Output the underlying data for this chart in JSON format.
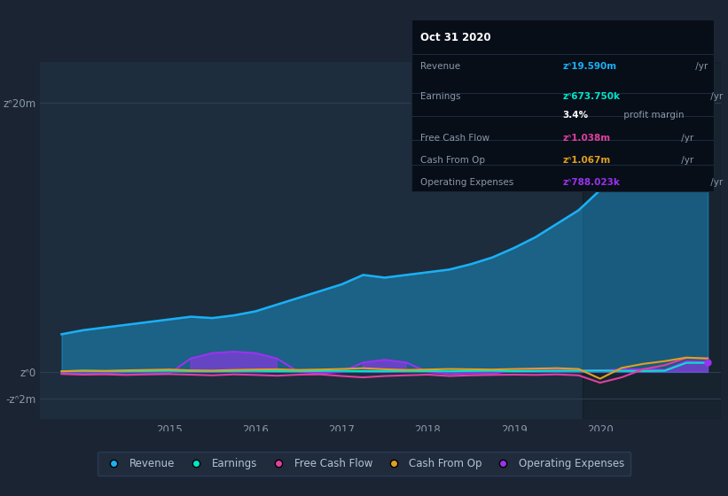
{
  "bg_color": "#1b2433",
  "plot_bg_color": "#1e2d3d",
  "grid_color": "#2e3f52",
  "text_color": "#8899aa",
  "white": "#ffffff",
  "yticks_labels": [
    "zᐢ20m",
    "zᐢ0",
    "-zᐢ2m"
  ],
  "ytick_vals": [
    20000000,
    0,
    -2000000
  ],
  "ylim": [
    -3500000,
    23000000
  ],
  "xlim": [
    2013.5,
    2021.4
  ],
  "xtick_vals": [
    2015,
    2016,
    2017,
    2018,
    2019,
    2020
  ],
  "revenue_color": "#1ab0f5",
  "earnings_color": "#00e5cc",
  "fcf_color": "#e040a0",
  "cashfromop_color": "#e0a020",
  "opex_color": "#9933ee",
  "revenue_fill_alpha": 0.4,
  "opex_fill_alpha": 0.6,
  "highlight_start": 2019.8,
  "highlight_end": 2021.4,
  "tooltip_bg": "#080e18",
  "tooltip_title": "Oct 31 2020",
  "tooltip_revenue_label": "Revenue",
  "tooltip_revenue_val": "zᐢ19.590m",
  "tooltip_revenue_yr": " /yr",
  "tooltip_earnings_label": "Earnings",
  "tooltip_earnings_val": "zᐢ673.750k",
  "tooltip_earnings_yr": " /yr",
  "tooltip_margin": "3.4%",
  "tooltip_margin_text": " profit margin",
  "tooltip_fcf_label": "Free Cash Flow",
  "tooltip_fcf_val": "zᐢ1.038m",
  "tooltip_fcf_yr": " /yr",
  "tooltip_cashop_label": "Cash From Op",
  "tooltip_cashop_val": "zᐢ1.067m",
  "tooltip_cashop_yr": " /yr",
  "tooltip_opex_label": "Operating Expenses",
  "tooltip_opex_val": "zᐢ788.023k",
  "tooltip_opex_yr": " /yr",
  "legend_labels": [
    "Revenue",
    "Earnings",
    "Free Cash Flow",
    "Cash From Op",
    "Operating Expenses"
  ],
  "revenue_t": [
    2013.75,
    2014.0,
    2014.25,
    2014.5,
    2014.75,
    2015.0,
    2015.25,
    2015.5,
    2015.75,
    2016.0,
    2016.25,
    2016.5,
    2016.75,
    2017.0,
    2017.25,
    2017.5,
    2017.75,
    2018.0,
    2018.25,
    2018.5,
    2018.75,
    2019.0,
    2019.25,
    2019.5,
    2019.75,
    2020.0,
    2020.25,
    2020.5,
    2020.75,
    2021.0,
    2021.25
  ],
  "revenue_v": [
    2.8,
    3.1,
    3.3,
    3.5,
    3.7,
    3.9,
    4.1,
    4.0,
    4.2,
    4.5,
    5.0,
    5.5,
    6.0,
    6.5,
    7.2,
    7.0,
    7.2,
    7.4,
    7.6,
    8.0,
    8.5,
    9.2,
    10.0,
    11.0,
    12.0,
    13.5,
    15.5,
    17.5,
    18.8,
    19.6,
    19.59
  ],
  "earnings_v": [
    0.05,
    0.08,
    0.06,
    0.05,
    0.07,
    0.09,
    0.06,
    0.05,
    0.07,
    0.08,
    0.06,
    0.05,
    0.07,
    0.08,
    0.06,
    0.05,
    0.07,
    0.06,
    0.05,
    0.07,
    0.08,
    0.06,
    0.07,
    0.08,
    0.09,
    0.1,
    0.08,
    0.07,
    0.09,
    0.674,
    0.68
  ],
  "fcf_v": [
    -0.15,
    -0.2,
    -0.18,
    -0.22,
    -0.18,
    -0.16,
    -0.2,
    -0.25,
    -0.18,
    -0.22,
    -0.28,
    -0.2,
    -0.18,
    -0.3,
    -0.4,
    -0.3,
    -0.25,
    -0.2,
    -0.3,
    -0.25,
    -0.22,
    -0.2,
    -0.22,
    -0.18,
    -0.25,
    -0.8,
    -0.4,
    0.2,
    0.5,
    1.038,
    1.0
  ],
  "cashop_v": [
    0.05,
    0.1,
    0.08,
    0.12,
    0.15,
    0.18,
    0.12,
    0.1,
    0.15,
    0.18,
    0.2,
    0.15,
    0.18,
    0.22,
    0.28,
    0.2,
    0.15,
    0.18,
    0.22,
    0.2,
    0.18,
    0.22,
    0.25,
    0.28,
    0.22,
    -0.5,
    0.3,
    0.6,
    0.8,
    1.067,
    1.0
  ],
  "opex_t_spike1": [
    2015.5,
    2015.75,
    2016.0,
    2016.25,
    2016.5,
    2016.75,
    2017.0
  ],
  "opex_v_spike1": [
    0.0,
    1.0,
    1.4,
    1.5,
    1.4,
    1.0,
    0.0
  ],
  "opex_t_spike2": [
    2017.25,
    2017.5,
    2017.75,
    2018.0,
    2018.25
  ],
  "opex_v_spike2": [
    0.0,
    0.7,
    0.9,
    0.7,
    0.0
  ],
  "opex_v": [
    -0.1,
    -0.15,
    -0.12,
    -0.18,
    -0.15,
    -0.12,
    1.0,
    1.4,
    1.5,
    1.4,
    1.0,
    0.0,
    -0.1,
    0.0,
    0.7,
    0.9,
    0.7,
    0.0,
    -0.15,
    -0.1,
    -0.12,
    0.12,
    0.18,
    0.15,
    0.1,
    0.12,
    0.18,
    0.2,
    0.15,
    0.788,
    0.75
  ]
}
